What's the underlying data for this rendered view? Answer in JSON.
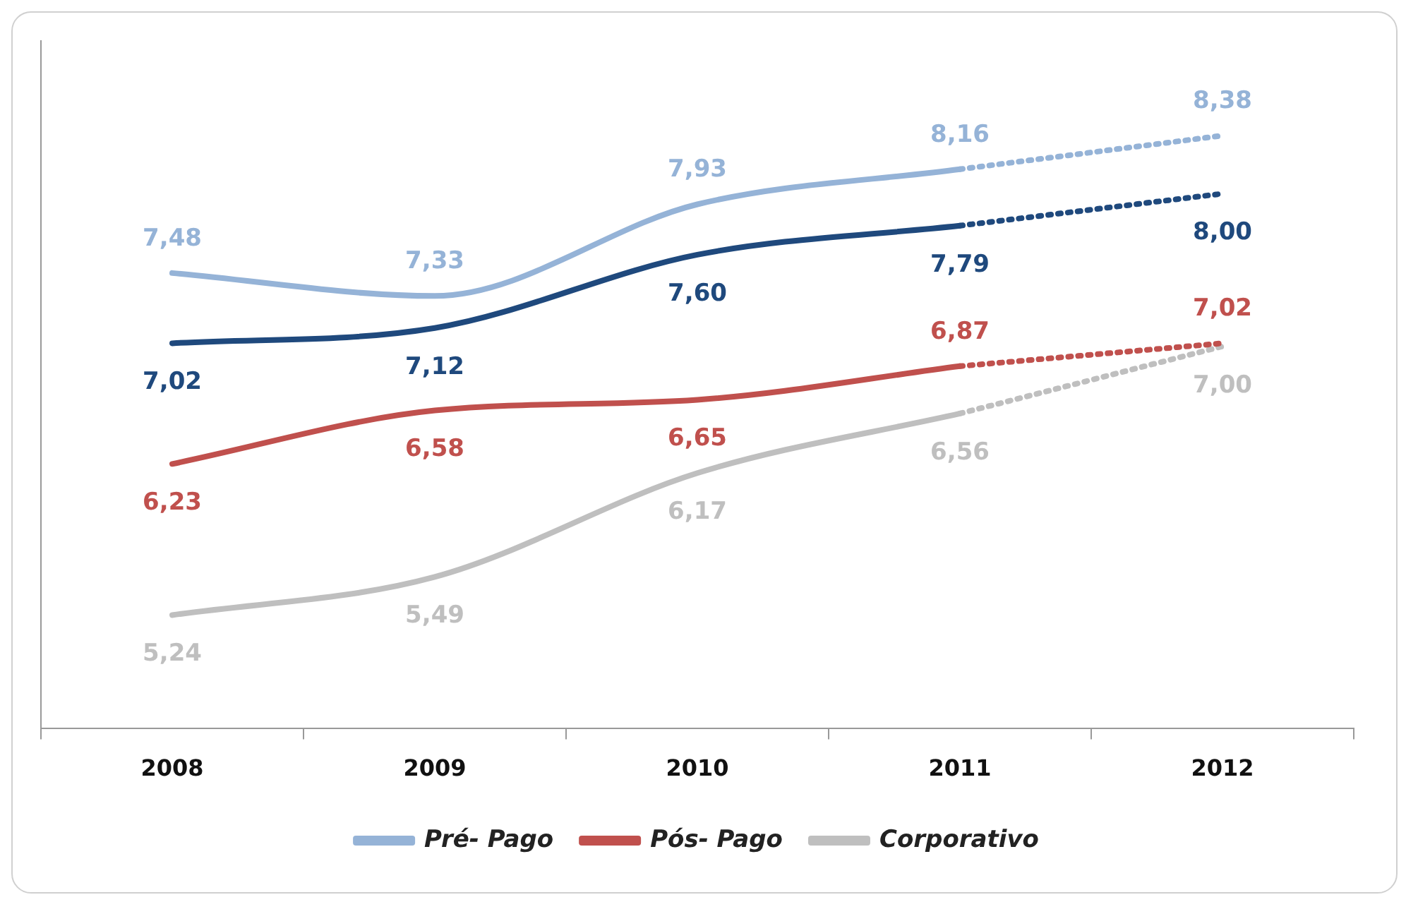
{
  "chart_data": {
    "type": "line",
    "categories": [
      "2008",
      "2009",
      "2010",
      "2011",
      "2012"
    ],
    "series": [
      {
        "name": "Pré- Pago",
        "color": "#95b3d7",
        "values": [
          7.48,
          7.33,
          7.93,
          8.16,
          null
        ],
        "value_labels": [
          "7,48",
          "7,33",
          "7,93",
          "8,16",
          null
        ]
      },
      {
        "type": "line",
        "line_style": "dotted",
        "color": "#95b3d7",
        "values": [
          null,
          null,
          null,
          8.16,
          8.38
        ],
        "value_labels": [
          null,
          null,
          null,
          null,
          "8,38"
        ]
      },
      {
        "name": "Pós- Pago",
        "color": "#c0504d",
        "values": [
          6.23,
          6.58,
          6.65,
          6.87,
          null
        ],
        "value_labels": [
          "6,23",
          "6,58",
          "6,65",
          "6,87",
          null
        ]
      },
      {
        "type": "line",
        "line_style": "dotted",
        "color": "#c0504d",
        "values": [
          null,
          null,
          null,
          6.87,
          7.02
        ],
        "value_labels": [
          null,
          null,
          null,
          null,
          "7,02"
        ]
      },
      {
        "name": "Corporativo",
        "color": "#bfbfbf",
        "values": [
          5.24,
          5.49,
          6.17,
          6.56,
          null
        ],
        "value_labels": [
          "5,24",
          "5,49",
          "6,17",
          "6,56",
          null
        ]
      },
      {
        "type": "line",
        "line_style": "dotted",
        "color": "#bfbfbf",
        "values": [
          null,
          null,
          null,
          6.56,
          7.0
        ],
        "value_labels": [
          null,
          null,
          null,
          null,
          "7,00"
        ]
      },
      {
        "color": "#1f497d",
        "values": [
          7.02,
          7.12,
          7.6,
          7.79,
          null
        ],
        "value_labels": [
          "7,02",
          "7,12",
          "7,60",
          "7,79",
          null
        ]
      },
      {
        "type": "line",
        "line_style": "dotted",
        "color": "#1f497d",
        "values": [
          null,
          null,
          null,
          7.79,
          8.0
        ],
        "value_labels": [
          null,
          null,
          null,
          null,
          "8,00"
        ]
      }
    ],
    "legend": "bottom",
    "grid": false,
    "marker": "none",
    "line_style": "solid"
  }
}
